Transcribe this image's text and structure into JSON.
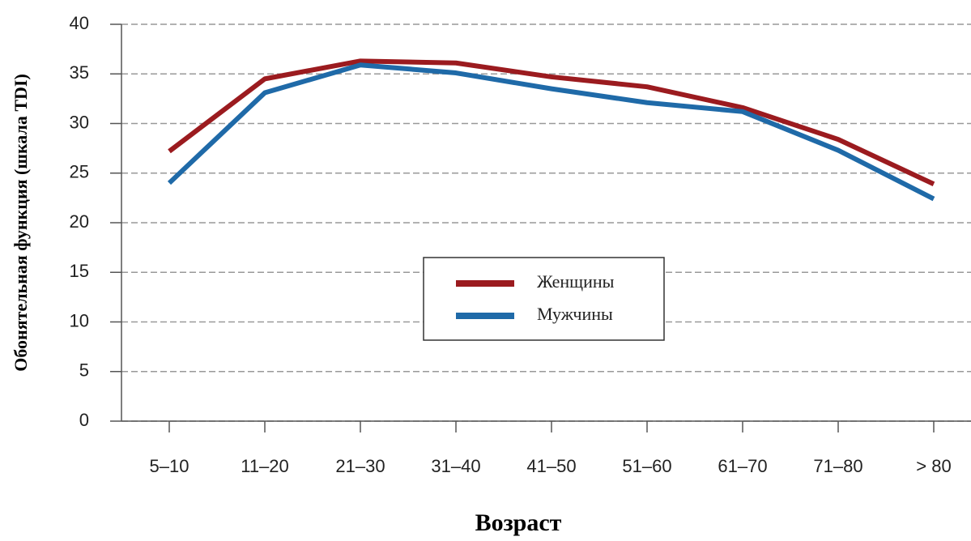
{
  "chart_data": {
    "type": "line",
    "x_label": "Возраст",
    "y_label": "Обонятельная функция (шкала TDI)",
    "categories": [
      "5–10",
      "11–20",
      "21–30",
      "31–40",
      "41–50",
      "51–60",
      "61–70",
      "71–80",
      "> 80"
    ],
    "series": [
      {
        "name": "Женщины",
        "color": "#9b1b1f",
        "values": [
          27.2,
          34.5,
          36.3,
          36.1,
          34.7,
          33.7,
          31.6,
          28.4,
          23.9
        ]
      },
      {
        "name": "Мужчины",
        "color": "#1f6aa8",
        "values": [
          24.0,
          33.1,
          35.9,
          35.1,
          33.5,
          32.1,
          31.2,
          27.3,
          22.4
        ]
      }
    ],
    "ylim": [
      0,
      40
    ],
    "yticks": [
      0,
      5,
      10,
      15,
      20,
      25,
      30,
      35,
      40
    ],
    "grid": true,
    "legend": "center"
  }
}
